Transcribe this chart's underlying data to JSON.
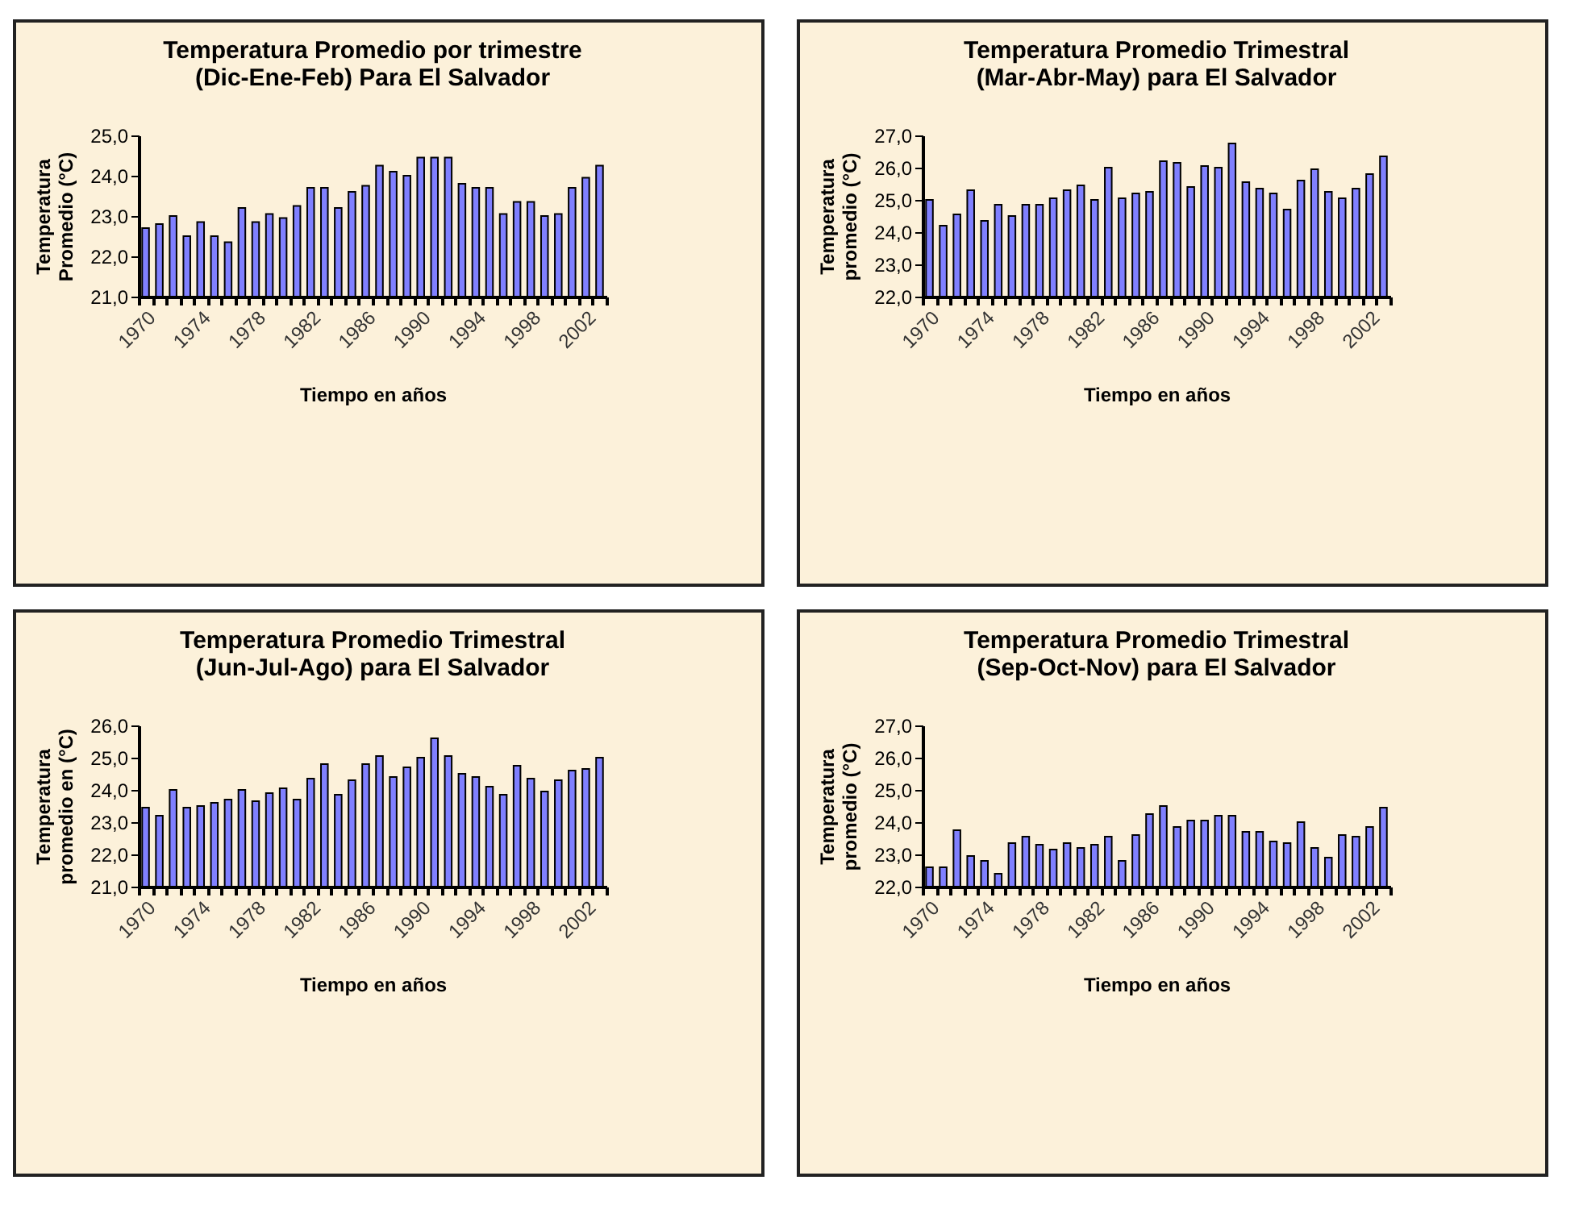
{
  "chart_data": [
    {
      "type": "bar",
      "title": "Temperatura Promedio por trimestre\n(Dic-Ene-Feb) Para El Salvador",
      "xlabel": "Tiempo en años",
      "ylabel": "Temperatura\nPromedio (°C)",
      "categories": [
        "1970",
        null,
        null,
        null,
        "1974",
        null,
        null,
        null,
        "1978",
        null,
        null,
        null,
        "1982",
        null,
        null,
        null,
        "1986",
        null,
        null,
        null,
        "1990",
        null,
        null,
        null,
        "1994",
        null,
        null,
        null,
        "1998",
        null,
        null,
        null,
        "2002",
        null
      ],
      "color": "#8080ff",
      "values": [
        22.7,
        22.8,
        23.0,
        22.5,
        22.85,
        22.5,
        22.35,
        23.2,
        22.85,
        23.05,
        22.95,
        23.25,
        23.7,
        23.7,
        23.2,
        23.6,
        23.75,
        24.25,
        24.1,
        24.0,
        24.45,
        24.45,
        24.45,
        23.8,
        23.7,
        23.7,
        23.05,
        23.35,
        23.35,
        23.0,
        23.05,
        23.7,
        23.95,
        24.25
      ],
      "ylim": [
        21,
        25
      ],
      "yticks": [
        {
          "value": 21,
          "label": "21,0"
        },
        {
          "value": 22,
          "label": "22,0"
        },
        {
          "value": 23,
          "label": "23,0"
        },
        {
          "value": 24,
          "label": "24,0"
        },
        {
          "value": 25,
          "label": "25,0"
        }
      ],
      "grid": false
    },
    {
      "type": "bar",
      "title": "Temperatura Promedio Trimestral\n(Mar-Abr-May) para El Salvador",
      "xlabel": "Tiempo en años",
      "ylabel": "Temperatura\npromedio (°C)",
      "categories": [
        "1970",
        null,
        null,
        null,
        "1974",
        null,
        null,
        null,
        "1978",
        null,
        null,
        null,
        "1982",
        null,
        null,
        null,
        "1986",
        null,
        null,
        null,
        "1990",
        null,
        null,
        null,
        "1994",
        null,
        null,
        null,
        "1998",
        null,
        null,
        null,
        "2002",
        null
      ],
      "color": "#8080ff",
      "values": [
        25.0,
        24.2,
        24.55,
        25.3,
        24.35,
        24.85,
        24.5,
        24.85,
        24.85,
        25.05,
        25.3,
        25.45,
        25.0,
        26.0,
        25.05,
        25.2,
        25.25,
        26.2,
        26.15,
        25.4,
        26.05,
        26.0,
        26.75,
        25.55,
        25.35,
        25.2,
        24.7,
        25.6,
        25.95,
        25.25,
        25.05,
        25.35,
        25.8,
        26.35
      ],
      "ylim": [
        22,
        27
      ],
      "yticks": [
        {
          "value": 22,
          "label": "22,0"
        },
        {
          "value": 23,
          "label": "23,0"
        },
        {
          "value": 24,
          "label": "24,0"
        },
        {
          "value": 25,
          "label": "25,0"
        },
        {
          "value": 26,
          "label": "26,0"
        },
        {
          "value": 27,
          "label": "27,0"
        }
      ],
      "grid": false
    },
    {
      "type": "bar",
      "title": "Temperatura Promedio Trimestral\n(Jun-Jul-Ago) para El Salvador",
      "xlabel": "Tiempo en años",
      "ylabel": "Temperatura\npromedio en (°C)",
      "categories": [
        "1970",
        null,
        null,
        null,
        "1974",
        null,
        null,
        null,
        "1978",
        null,
        null,
        null,
        "1982",
        null,
        null,
        null,
        "1986",
        null,
        null,
        null,
        "1990",
        null,
        null,
        null,
        "1994",
        null,
        null,
        null,
        "1998",
        null,
        null,
        null,
        "2002",
        null
      ],
      "color": "#8080ff",
      "values": [
        23.45,
        23.2,
        24.0,
        23.45,
        23.5,
        23.6,
        23.7,
        24.0,
        23.65,
        23.9,
        24.05,
        23.7,
        24.35,
        24.8,
        23.85,
        24.3,
        24.8,
        25.05,
        24.4,
        24.7,
        25.0,
        25.6,
        25.05,
        24.5,
        24.4,
        24.1,
        23.85,
        24.75,
        24.35,
        23.95,
        24.3,
        24.6,
        24.65,
        25.0
      ],
      "ylim": [
        21,
        26
      ],
      "yticks": [
        {
          "value": 21,
          "label": "21,0"
        },
        {
          "value": 22,
          "label": "22,0"
        },
        {
          "value": 23,
          "label": "23,0"
        },
        {
          "value": 24,
          "label": "24,0"
        },
        {
          "value": 25,
          "label": "25,0"
        },
        {
          "value": 26,
          "label": "26,0"
        }
      ],
      "grid": false
    },
    {
      "type": "bar",
      "title": "Temperatura Promedio Trimestral\n(Sep-Oct-Nov) para El Salvador",
      "xlabel": "Tiempo en años",
      "ylabel": "Temperatura\npromedio (°C)",
      "categories": [
        "1970",
        null,
        null,
        null,
        "1974",
        null,
        null,
        null,
        "1978",
        null,
        null,
        null,
        "1982",
        null,
        null,
        null,
        "1986",
        null,
        null,
        null,
        "1990",
        null,
        null,
        null,
        "1994",
        null,
        null,
        null,
        "1998",
        null,
        null,
        null,
        "2002",
        null
      ],
      "color": "#8080ff",
      "values": [
        22.6,
        22.6,
        23.75,
        22.95,
        22.8,
        22.4,
        23.35,
        23.55,
        23.3,
        23.15,
        23.35,
        23.2,
        23.3,
        23.55,
        22.8,
        23.6,
        24.25,
        24.5,
        23.85,
        24.05,
        24.05,
        24.2,
        24.2,
        23.7,
        23.7,
        23.4,
        23.35,
        24.0,
        23.2,
        22.9,
        23.6,
        23.55,
        23.85,
        24.45
      ],
      "ylim": [
        22,
        27
      ],
      "yticks": [
        {
          "value": 22,
          "label": "22,0"
        },
        {
          "value": 23,
          "label": "23,0"
        },
        {
          "value": 24,
          "label": "24,0"
        },
        {
          "value": 25,
          "label": "25,0"
        },
        {
          "value": 26,
          "label": "26,0"
        },
        {
          "value": 27,
          "label": "27,0"
        }
      ],
      "grid": false
    }
  ]
}
